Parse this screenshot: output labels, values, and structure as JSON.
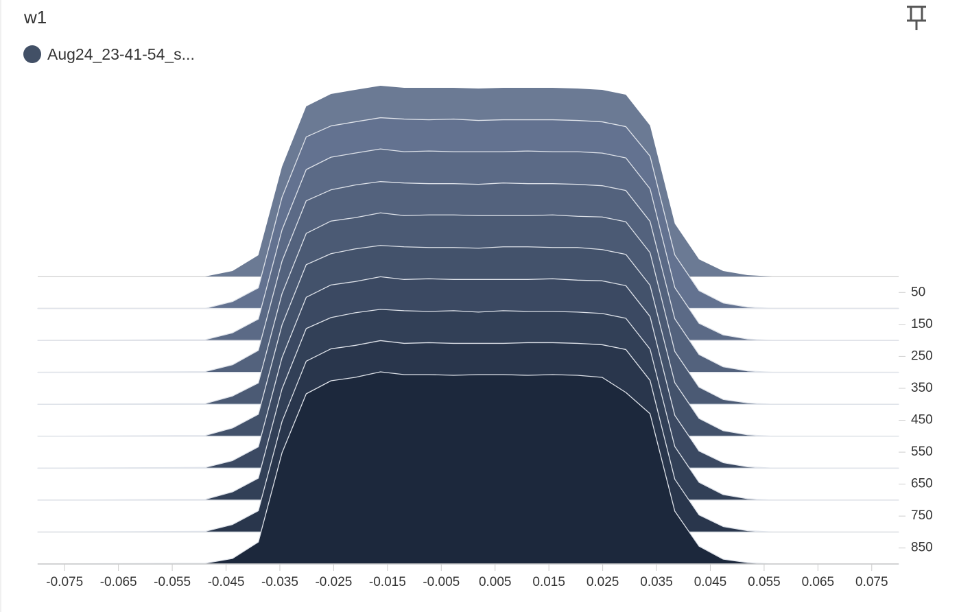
{
  "chart_data": {
    "type": "ridgeline",
    "title": "w1",
    "legend": {
      "label": "Aug24_23-41-54_s...",
      "color": "#425066"
    },
    "x": [
      -0.08,
      -0.0489,
      -0.0438,
      -0.039,
      -0.0346,
      -0.0301,
      -0.0255,
      -0.021,
      -0.0163,
      -0.0119,
      -0.0073,
      -0.0027,
      0.0019,
      0.0065,
      0.0111,
      0.0157,
      0.0203,
      0.0249,
      0.0293,
      0.0338,
      0.0384,
      0.0429,
      0.0474,
      0.0519,
      0.0565,
      0.08
    ],
    "xlim": [
      -0.08,
      0.08
    ],
    "xticks": [
      -0.075,
      -0.065,
      -0.055,
      -0.045,
      -0.035,
      -0.025,
      -0.015,
      -0.005,
      0.005,
      0.015,
      0.025,
      0.035,
      0.045,
      0.055,
      0.065,
      0.075
    ],
    "ylim": [
      0,
      900
    ],
    "yticks": [
      50,
      150,
      250,
      350,
      450,
      550,
      650,
      750,
      850
    ],
    "series": [
      {
        "step": 0,
        "color": "#6b7a94",
        "values": [
          0,
          0,
          8,
          31,
          160,
          248,
          266,
          272,
          278,
          275,
          275,
          275,
          274,
          275,
          275,
          275,
          274,
          272,
          265,
          220,
          77,
          25,
          8,
          2,
          0,
          0
        ]
      },
      {
        "step": 100,
        "color": "#637290",
        "values": [
          0,
          0,
          10,
          30,
          162,
          250,
          266,
          272,
          278,
          276,
          275,
          276,
          274,
          275,
          275,
          275,
          274,
          272,
          265,
          222,
          78,
          26,
          8,
          2,
          0,
          0
        ]
      },
      {
        "step": 200,
        "color": "#5b6a86",
        "values": [
          0,
          1,
          11,
          31,
          161,
          249,
          267,
          273,
          279,
          275,
          276,
          275,
          275,
          275,
          276,
          275,
          275,
          273,
          266,
          221,
          77,
          25,
          8,
          2,
          0,
          0
        ]
      },
      {
        "step": 300,
        "color": "#53627d",
        "values": [
          0,
          1,
          11,
          32,
          162,
          250,
          266,
          273,
          278,
          276,
          275,
          275,
          274,
          276,
          275,
          275,
          274,
          272,
          265,
          220,
          78,
          26,
          8,
          2,
          0,
          0
        ]
      },
      {
        "step": 400,
        "color": "#4b5a74",
        "values": [
          0,
          1,
          12,
          31,
          161,
          249,
          267,
          272,
          279,
          275,
          276,
          276,
          275,
          275,
          275,
          276,
          274,
          273,
          266,
          221,
          77,
          25,
          7,
          2,
          0,
          0
        ]
      },
      {
        "step": 500,
        "color": "#43526b",
        "values": [
          0,
          1,
          12,
          32,
          162,
          250,
          266,
          273,
          278,
          276,
          275,
          275,
          274,
          276,
          276,
          275,
          275,
          272,
          265,
          220,
          78,
          26,
          8,
          2,
          0,
          0
        ]
      },
      {
        "step": 600,
        "color": "#3b4962",
        "values": [
          0,
          1,
          11,
          31,
          161,
          249,
          267,
          272,
          279,
          275,
          276,
          275,
          275,
          275,
          275,
          276,
          274,
          273,
          266,
          221,
          77,
          25,
          8,
          2,
          0,
          0
        ]
      },
      {
        "step": 700,
        "color": "#324057",
        "values": [
          0,
          1,
          12,
          32,
          162,
          250,
          266,
          273,
          278,
          276,
          275,
          276,
          274,
          276,
          275,
          275,
          274,
          272,
          265,
          220,
          78,
          26,
          8,
          2,
          0,
          0
        ]
      },
      {
        "step": 800,
        "color": "#29364c",
        "values": [
          0,
          1,
          11,
          31,
          161,
          249,
          267,
          272,
          279,
          275,
          276,
          275,
          275,
          275,
          276,
          276,
          275,
          273,
          266,
          221,
          77,
          25,
          8,
          2,
          0,
          0
        ]
      },
      {
        "step": 900,
        "color": "#1c283c",
        "values": [
          0,
          1,
          8,
          32,
          162,
          248,
          267,
          272,
          280,
          276,
          276,
          275,
          276,
          276,
          275,
          276,
          275,
          272,
          250,
          219,
          77,
          26,
          7,
          2,
          0,
          0
        ]
      }
    ]
  }
}
